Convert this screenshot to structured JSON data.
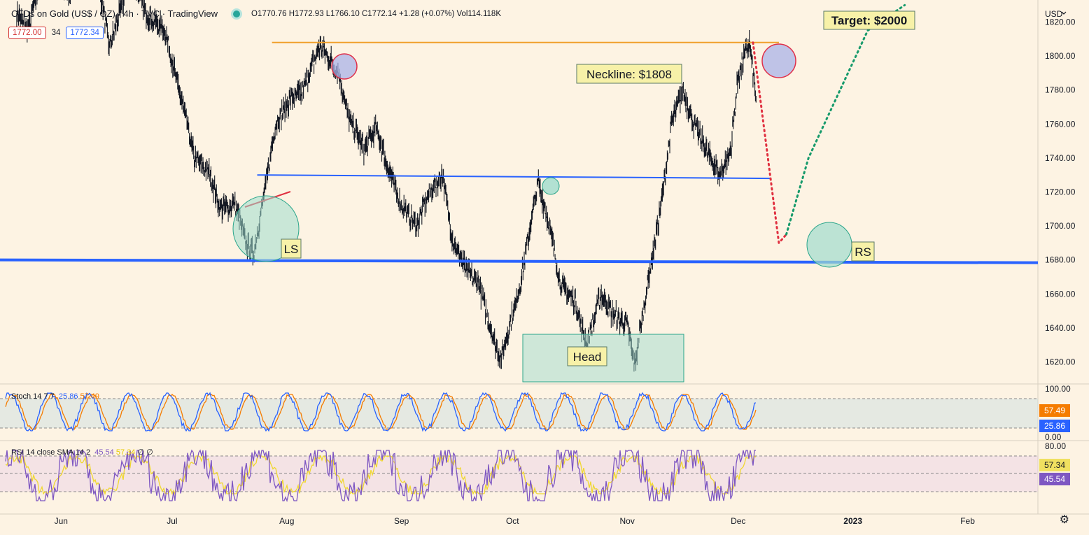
{
  "header": {
    "symbol": "CFDs on Gold (US$ / OZ) · 4h · TVC · TradingView",
    "ohlc": "O1770.76  H1772.93  L1766.10  C1772.14  +1.28 (+0.07%)  Vol114.118K",
    "sell_price": "1772.00",
    "spread": "34",
    "buy_price": "1772.34"
  },
  "currency": "USD",
  "colors": {
    "background": "#fdf3e3",
    "neckline": "#f0a02a",
    "support": "#2962ff",
    "shoulder_fill": "#9fdccd",
    "top_circle_fill": "#aab3e8",
    "top_circle_stroke": "#e0304a",
    "red_path": "#e03040",
    "green_path": "#169a6b",
    "stoch_k": "#2962ff",
    "stoch_d": "#f57c00",
    "rsi": "#7e57c2",
    "rsi_sma": "#f0d830"
  },
  "annotations": {
    "target": "Target: $2000",
    "neckline": "Neckline: $1808",
    "ls": "LS",
    "head": "Head",
    "rs": "RS"
  },
  "indicators": {
    "stoch": {
      "label": "Stoch 14 7 7",
      "k": "25.86",
      "d": "57.49",
      "levels": [
        "100.00",
        "0.00"
      ]
    },
    "rsi": {
      "label": "RSI 14 close SMA 14 2",
      "value": "45.54",
      "sma": "57.34",
      "symbols": "∅ ∅",
      "levels": [
        "80.00"
      ]
    }
  },
  "chart_data": {
    "type": "line",
    "title": "CFDs on Gold (US$ / OZ) · 4h · TVC · TradingView",
    "y_ticks": [
      "1820.00",
      "1800.00",
      "1780.00",
      "1760.00",
      "1740.00",
      "1720.00",
      "1700.00",
      "1680.00",
      "1660.00",
      "1640.00",
      "1620.00"
    ],
    "x_ticks": [
      "Jun",
      "Jul",
      "Aug",
      "Sep",
      "Oct",
      "Nov",
      "Dec",
      "2023",
      "Feb"
    ],
    "ylim": [
      1607,
      1833
    ],
    "date_axis": [
      "2022-05-17",
      "2023-02-20"
    ],
    "price_path": [
      [
        "2022-05-20",
        1825
      ],
      [
        "2022-05-23",
        1815
      ],
      [
        "2022-05-27",
        1850
      ],
      [
        "2022-06-03",
        1838
      ],
      [
        "2022-06-10",
        1860
      ],
      [
        "2022-06-14",
        1805
      ],
      [
        "2022-06-20",
        1848
      ],
      [
        "2022-06-24",
        1825
      ],
      [
        "2022-06-29",
        1815
      ],
      [
        "2022-07-04",
        1770
      ],
      [
        "2022-07-07",
        1740
      ],
      [
        "2022-07-11",
        1732
      ],
      [
        "2022-07-14",
        1710
      ],
      [
        "2022-07-18",
        1713
      ],
      [
        "2022-07-21",
        1690
      ],
      [
        "2022-07-23",
        1683
      ],
      [
        "2022-07-26",
        1720
      ],
      [
        "2022-07-29",
        1760
      ],
      [
        "2022-08-02",
        1775
      ],
      [
        "2022-08-05",
        1778
      ],
      [
        "2022-08-08",
        1795
      ],
      [
        "2022-08-10",
        1806
      ],
      [
        "2022-08-12",
        1800
      ],
      [
        "2022-08-15",
        1790
      ],
      [
        "2022-08-18",
        1762
      ],
      [
        "2022-08-22",
        1745
      ],
      [
        "2022-08-25",
        1758
      ],
      [
        "2022-08-29",
        1730
      ],
      [
        "2022-09-01",
        1712
      ],
      [
        "2022-09-05",
        1700
      ],
      [
        "2022-09-08",
        1718
      ],
      [
        "2022-09-12",
        1730
      ],
      [
        "2022-09-15",
        1690
      ],
      [
        "2022-09-19",
        1672
      ],
      [
        "2022-09-22",
        1665
      ],
      [
        "2022-09-26",
        1632
      ],
      [
        "2022-09-28",
        1622
      ],
      [
        "2022-10-03",
        1665
      ],
      [
        "2022-10-06",
        1702
      ],
      [
        "2022-10-08",
        1726
      ],
      [
        "2022-10-11",
        1700
      ],
      [
        "2022-10-14",
        1665
      ],
      [
        "2022-10-18",
        1655
      ],
      [
        "2022-10-21",
        1630
      ],
      [
        "2022-10-25",
        1660
      ],
      [
        "2022-10-28",
        1648
      ],
      [
        "2022-11-01",
        1642
      ],
      [
        "2022-11-03",
        1618
      ],
      [
        "2022-11-07",
        1672
      ],
      [
        "2022-11-10",
        1710
      ],
      [
        "2022-11-13",
        1760
      ],
      [
        "2022-11-16",
        1780
      ],
      [
        "2022-11-19",
        1760
      ],
      [
        "2022-11-23",
        1742
      ],
      [
        "2022-11-26",
        1730
      ],
      [
        "2022-11-29",
        1745
      ],
      [
        "2022-12-01",
        1788
      ],
      [
        "2022-12-04",
        1808
      ],
      [
        "2022-12-06",
        1772
      ]
    ],
    "neckline": {
      "from": "2022-07-28",
      "to": "2022-12-12",
      "value": 1808
    },
    "trendline": {
      "from": "2022-07-24",
      "to": "2022-12-10",
      "values": [
        1730,
        1728
      ]
    },
    "support": {
      "value": 1680
    },
    "projection_down": [
      [
        "2022-12-05",
        1808
      ],
      [
        "2022-12-12",
        1690
      ],
      [
        "2022-12-14",
        1695
      ]
    ],
    "projection_up": [
      [
        "2022-12-14",
        1695
      ],
      [
        "2022-12-20",
        1740
      ],
      [
        "2023-01-05",
        1815
      ],
      [
        "2023-01-15",
        1830
      ]
    ]
  }
}
